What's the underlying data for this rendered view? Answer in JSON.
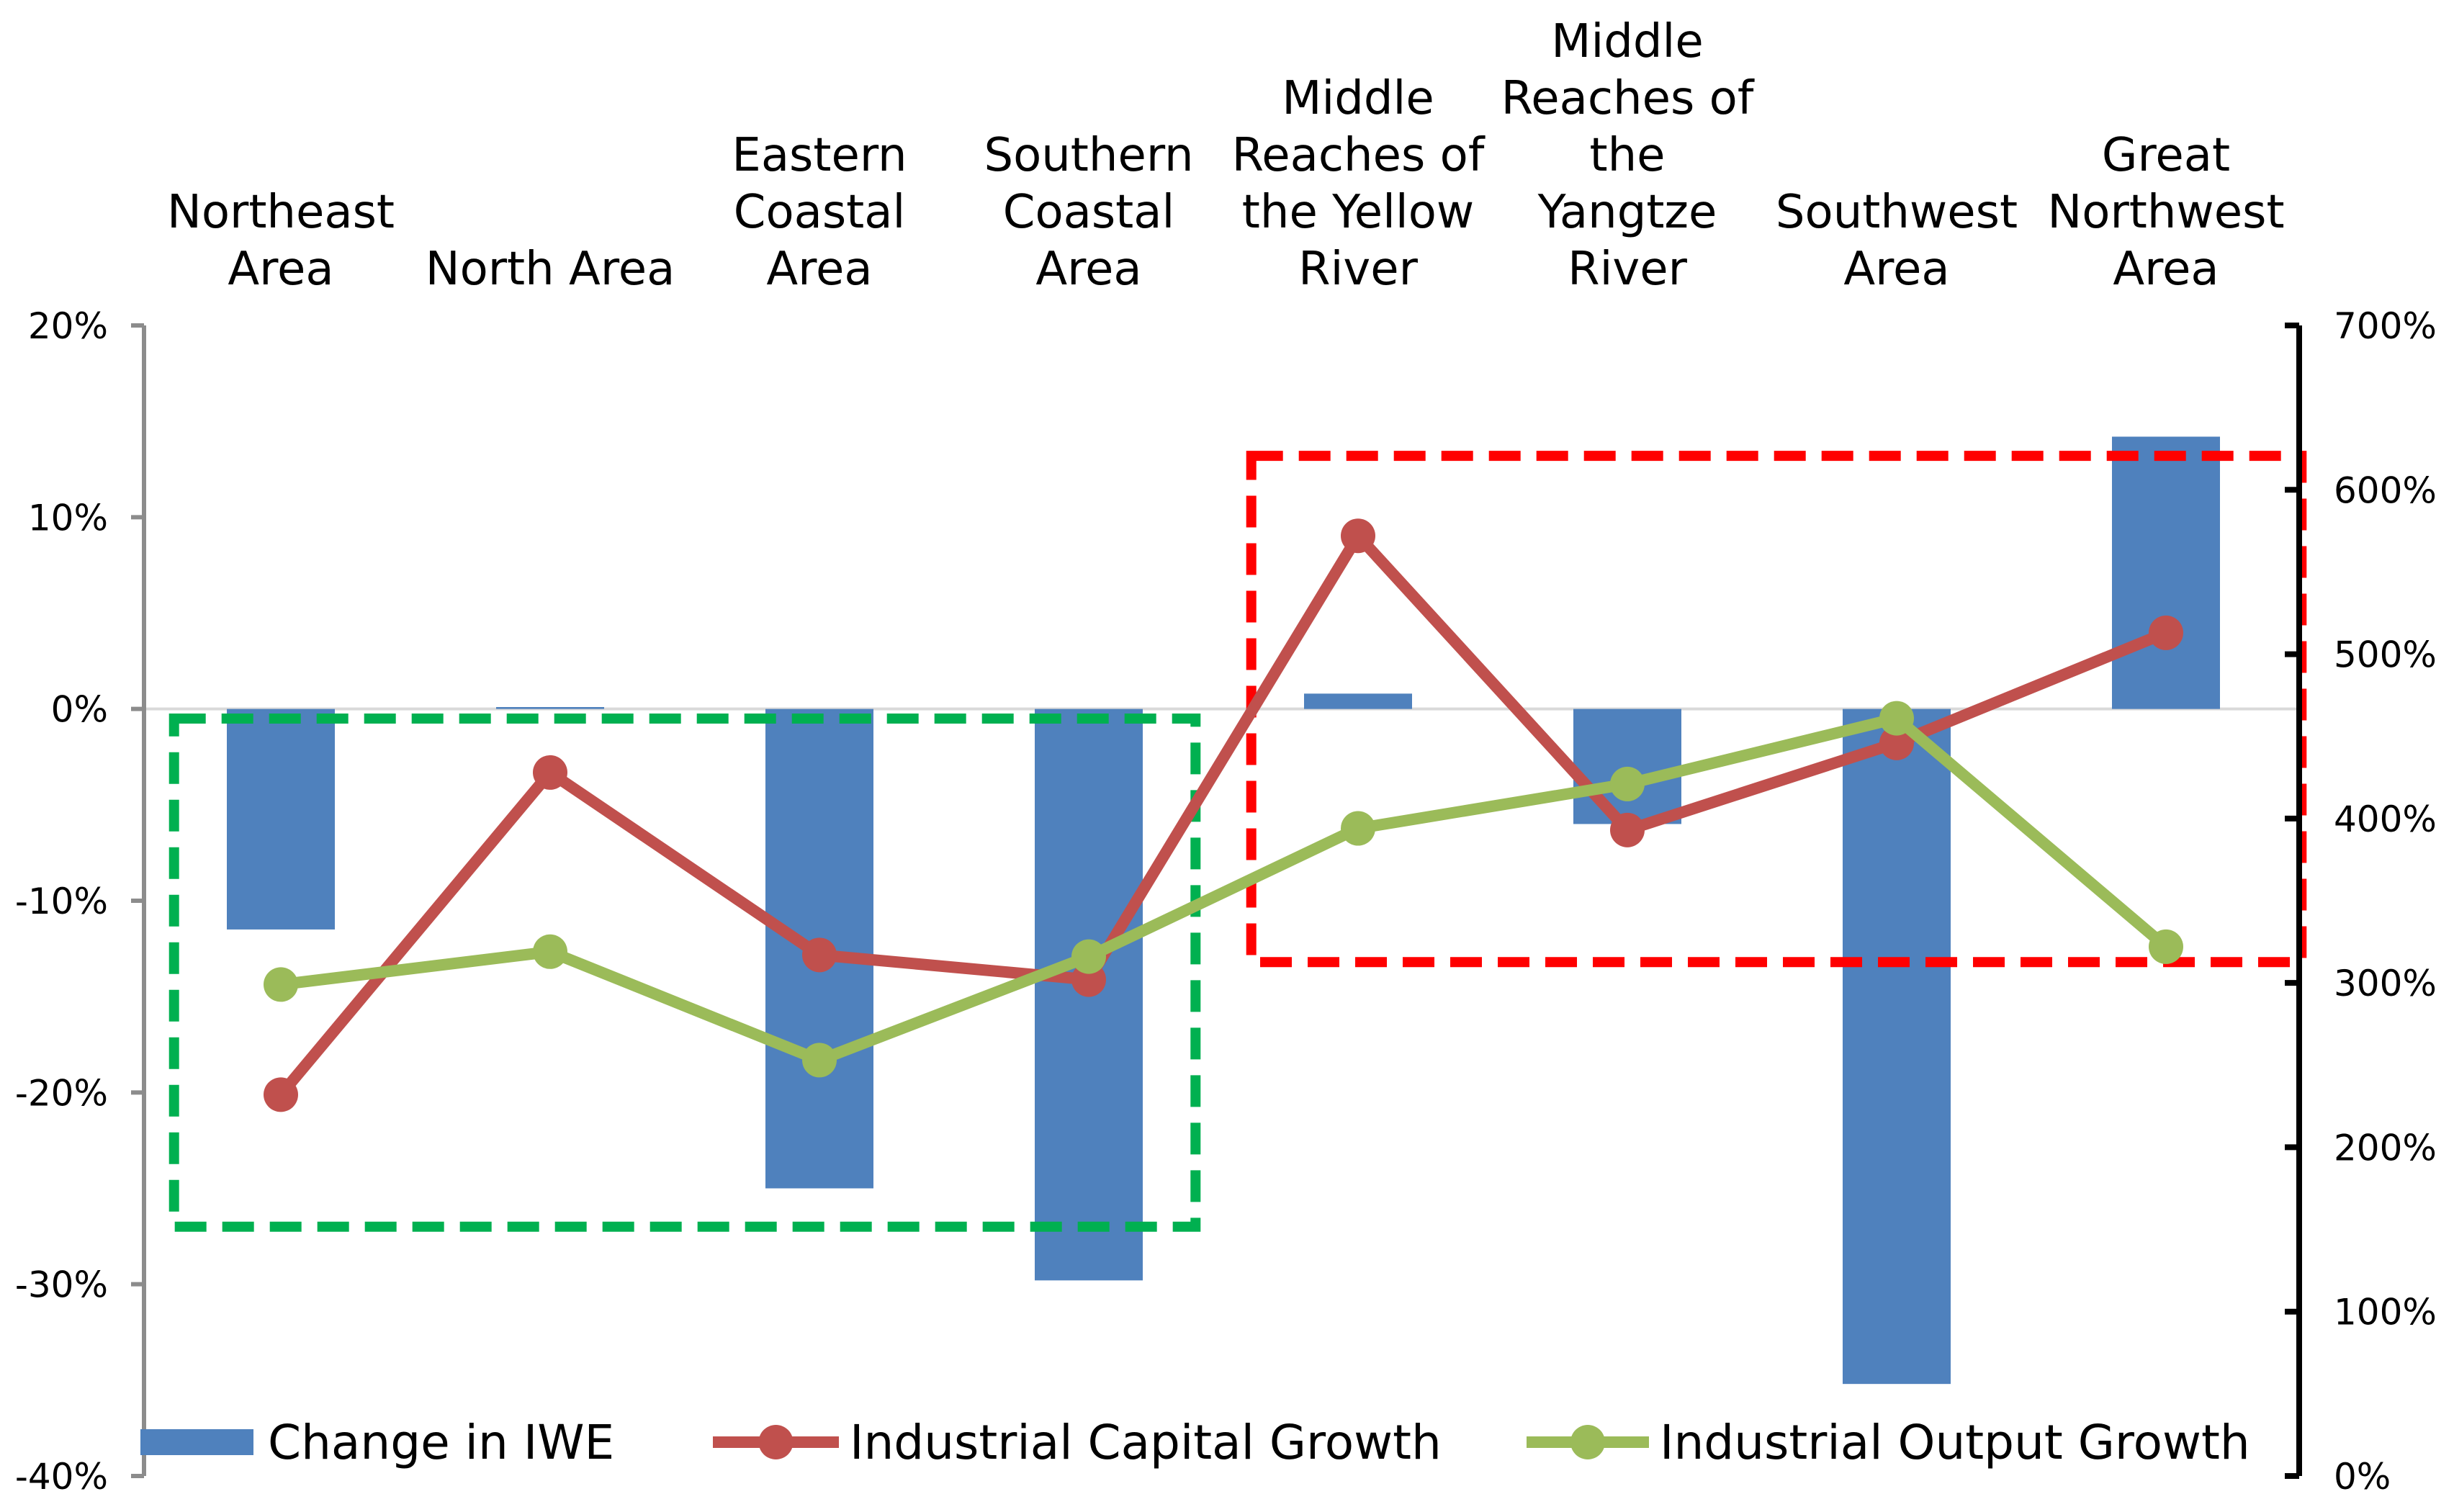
{
  "chart_data": {
    "type": "bar",
    "categories": [
      [
        "Northeast",
        "Area"
      ],
      [
        "North Area"
      ],
      [
        "Eastern",
        "Coastal",
        "Area"
      ],
      [
        "Southern",
        "Coastal",
        "Area"
      ],
      [
        "Middle",
        "Reaches of",
        "the Yellow",
        "River"
      ],
      [
        "Middle",
        "Reaches of",
        "the",
        "Yangtze",
        "River"
      ],
      [
        "Southwest",
        "Area"
      ],
      [
        "Great",
        "Northwest",
        "Area"
      ]
    ],
    "y_left": {
      "ylim": [
        -40,
        20
      ],
      "ticks": [
        20,
        10,
        0,
        -10,
        -20,
        -30,
        -40
      ],
      "tick_labels": [
        "20%",
        "10%",
        "0%",
        "-10%",
        "-20%",
        "-30%",
        "-40%"
      ]
    },
    "y_right": {
      "ylim": [
        0,
        700
      ],
      "ticks": [
        700,
        600,
        500,
        400,
        300,
        200,
        100,
        0
      ],
      "tick_labels": [
        "700%",
        "600%",
        "500%",
        "400%",
        "300%",
        "200%",
        "100%",
        "0%"
      ]
    },
    "series": [
      {
        "name": "Change in IWE",
        "type": "bar",
        "axis": "left",
        "color": "#4F81BD",
        "values": [
          -11.5,
          0.1,
          -25.0,
          -29.8,
          0.8,
          -6.0,
          -35.2,
          14.2
        ]
      },
      {
        "name": "Industrial Capital Growth",
        "type": "line",
        "axis": "right",
        "color": "#C0504D",
        "values": [
          232,
          428,
          317,
          302,
          572,
          393,
          446,
          513
        ]
      },
      {
        "name": "Industrial Output Growth",
        "type": "line",
        "axis": "right",
        "color": "#9BBB59",
        "values": [
          299,
          319,
          253,
          316,
          394,
          421,
          461,
          322
        ]
      }
    ],
    "annotation_boxes": [
      {
        "color": "#00B050",
        "from_category": 0,
        "to_category": 3,
        "y_top": -0.5,
        "y_bottom": -27
      },
      {
        "color": "#FF0000",
        "from_category": 4,
        "to_category": 7,
        "y_top": 13.2,
        "y_bottom": -13.2
      }
    ],
    "grid": false,
    "legend": "bottom"
  }
}
